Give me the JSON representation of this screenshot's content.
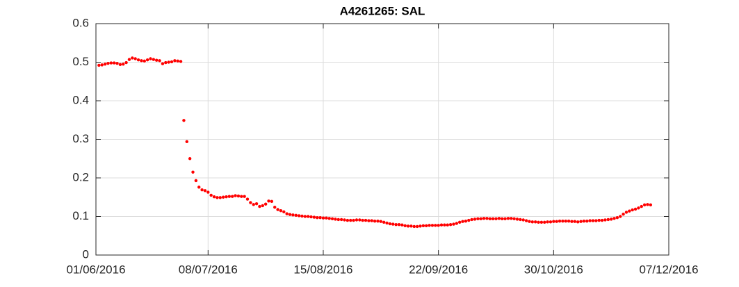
{
  "chart_data": {
    "type": "scatter",
    "title": "A4261265: SAL",
    "xlim": [
      "2016-06-01",
      "2016-12-07"
    ],
    "xticks": [
      {
        "value": "2016-06-01",
        "label": "01/06/2016"
      },
      {
        "value": "2016-07-08",
        "label": "08/07/2016"
      },
      {
        "value": "2016-08-15",
        "label": "15/08/2016"
      },
      {
        "value": "2016-09-22",
        "label": "22/09/2016"
      },
      {
        "value": "2016-10-30",
        "label": "30/10/2016"
      },
      {
        "value": "2016-12-07",
        "label": "07/12/2016"
      }
    ],
    "ylim": [
      0,
      0.6
    ],
    "yticks": [
      0,
      0.1,
      0.2,
      0.3,
      0.4,
      0.5,
      0.6
    ],
    "grid": true,
    "color": "#ff0000",
    "x": [
      "2016-06-02",
      "2016-06-03",
      "2016-06-04",
      "2016-06-05",
      "2016-06-06",
      "2016-06-07",
      "2016-06-08",
      "2016-06-09",
      "2016-06-10",
      "2016-06-11",
      "2016-06-12",
      "2016-06-13",
      "2016-06-14",
      "2016-06-15",
      "2016-06-16",
      "2016-06-17",
      "2016-06-18",
      "2016-06-19",
      "2016-06-20",
      "2016-06-21",
      "2016-06-22",
      "2016-06-23",
      "2016-06-24",
      "2016-06-25",
      "2016-06-26",
      "2016-06-27",
      "2016-06-28",
      "2016-06-29",
      "2016-06-30",
      "2016-07-01",
      "2016-07-02",
      "2016-07-03",
      "2016-07-04",
      "2016-07-05",
      "2016-07-06",
      "2016-07-07",
      "2016-07-08",
      "2016-07-09",
      "2016-07-10",
      "2016-07-11",
      "2016-07-12",
      "2016-07-13",
      "2016-07-14",
      "2016-07-15",
      "2016-07-16",
      "2016-07-17",
      "2016-07-18",
      "2016-07-19",
      "2016-07-20",
      "2016-07-21",
      "2016-07-22",
      "2016-07-23",
      "2016-07-24",
      "2016-07-25",
      "2016-07-26",
      "2016-07-27",
      "2016-07-28",
      "2016-07-29",
      "2016-07-30",
      "2016-07-31",
      "2016-08-01",
      "2016-08-02",
      "2016-08-03",
      "2016-08-04",
      "2016-08-05",
      "2016-08-06",
      "2016-08-07",
      "2016-08-08",
      "2016-08-09",
      "2016-08-10",
      "2016-08-11",
      "2016-08-12",
      "2016-08-13",
      "2016-08-14",
      "2016-08-15",
      "2016-08-16",
      "2016-08-17",
      "2016-08-18",
      "2016-08-19",
      "2016-08-20",
      "2016-08-21",
      "2016-08-22",
      "2016-08-23",
      "2016-08-24",
      "2016-08-25",
      "2016-08-26",
      "2016-08-27",
      "2016-08-28",
      "2016-08-29",
      "2016-08-30",
      "2016-08-31",
      "2016-09-01",
      "2016-09-02",
      "2016-09-03",
      "2016-09-04",
      "2016-09-05",
      "2016-09-06",
      "2016-09-07",
      "2016-09-08",
      "2016-09-09",
      "2016-09-10",
      "2016-09-11",
      "2016-09-12",
      "2016-09-13",
      "2016-09-14",
      "2016-09-15",
      "2016-09-16",
      "2016-09-17",
      "2016-09-18",
      "2016-09-19",
      "2016-09-20",
      "2016-09-21",
      "2016-09-22",
      "2016-09-23",
      "2016-09-24",
      "2016-09-25",
      "2016-09-26",
      "2016-09-27",
      "2016-09-28",
      "2016-09-29",
      "2016-09-30",
      "2016-10-01",
      "2016-10-02",
      "2016-10-03",
      "2016-10-04",
      "2016-10-05",
      "2016-10-06",
      "2016-10-07",
      "2016-10-08",
      "2016-10-09",
      "2016-10-10",
      "2016-10-11",
      "2016-10-12",
      "2016-10-13",
      "2016-10-14",
      "2016-10-15",
      "2016-10-16",
      "2016-10-17",
      "2016-10-18",
      "2016-10-19",
      "2016-10-20",
      "2016-10-21",
      "2016-10-22",
      "2016-10-23",
      "2016-10-24",
      "2016-10-25",
      "2016-10-26",
      "2016-10-27",
      "2016-10-28",
      "2016-10-29",
      "2016-10-30",
      "2016-10-31",
      "2016-11-01",
      "2016-11-02",
      "2016-11-03",
      "2016-11-04",
      "2016-11-05",
      "2016-11-06",
      "2016-11-07",
      "2016-11-08",
      "2016-11-09",
      "2016-11-10",
      "2016-11-11",
      "2016-11-12",
      "2016-11-13",
      "2016-11-14",
      "2016-11-15",
      "2016-11-16",
      "2016-11-17",
      "2016-11-18",
      "2016-11-19",
      "2016-11-20",
      "2016-11-21",
      "2016-11-22",
      "2016-11-23",
      "2016-11-24",
      "2016-11-25",
      "2016-11-26",
      "2016-11-27",
      "2016-11-28",
      "2016-11-29",
      "2016-11-30",
      "2016-12-01"
    ],
    "values": [
      0.492,
      0.493,
      0.495,
      0.497,
      0.498,
      0.498,
      0.497,
      0.494,
      0.495,
      0.499,
      0.507,
      0.511,
      0.509,
      0.506,
      0.504,
      0.503,
      0.506,
      0.509,
      0.507,
      0.505,
      0.504,
      0.496,
      0.499,
      0.5,
      0.501,
      0.504,
      0.503,
      0.502,
      0.349,
      0.294,
      0.25,
      0.215,
      0.193,
      0.176,
      0.169,
      0.167,
      0.163,
      0.155,
      0.151,
      0.149,
      0.149,
      0.15,
      0.151,
      0.152,
      0.152,
      0.154,
      0.153,
      0.152,
      0.152,
      0.145,
      0.136,
      0.131,
      0.133,
      0.126,
      0.128,
      0.132,
      0.14,
      0.139,
      0.124,
      0.118,
      0.115,
      0.112,
      0.107,
      0.105,
      0.104,
      0.103,
      0.102,
      0.101,
      0.1,
      0.1,
      0.099,
      0.098,
      0.097,
      0.097,
      0.096,
      0.096,
      0.095,
      0.094,
      0.093,
      0.092,
      0.092,
      0.091,
      0.09,
      0.09,
      0.09,
      0.091,
      0.091,
      0.09,
      0.09,
      0.089,
      0.089,
      0.088,
      0.088,
      0.087,
      0.085,
      0.083,
      0.081,
      0.08,
      0.079,
      0.079,
      0.078,
      0.076,
      0.075,
      0.075,
      0.074,
      0.074,
      0.075,
      0.076,
      0.076,
      0.077,
      0.077,
      0.077,
      0.077,
      0.078,
      0.078,
      0.078,
      0.079,
      0.08,
      0.082,
      0.085,
      0.087,
      0.088,
      0.09,
      0.092,
      0.093,
      0.094,
      0.094,
      0.095,
      0.095,
      0.094,
      0.094,
      0.094,
      0.095,
      0.094,
      0.094,
      0.095,
      0.095,
      0.094,
      0.093,
      0.092,
      0.091,
      0.089,
      0.087,
      0.086,
      0.086,
      0.085,
      0.085,
      0.085,
      0.086,
      0.086,
      0.087,
      0.087,
      0.088,
      0.088,
      0.088,
      0.088,
      0.087,
      0.087,
      0.086,
      0.087,
      0.088,
      0.088,
      0.089,
      0.089,
      0.089,
      0.09,
      0.09,
      0.091,
      0.092,
      0.093,
      0.095,
      0.097,
      0.1,
      0.106,
      0.111,
      0.114,
      0.117,
      0.119,
      0.122,
      0.126,
      0.13,
      0.131,
      0.13
    ]
  }
}
